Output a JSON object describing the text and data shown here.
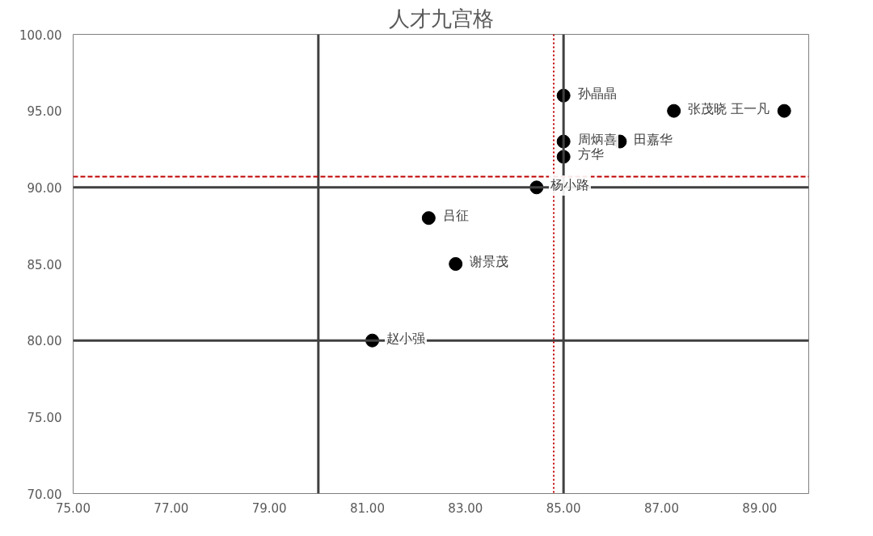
{
  "chart_data": {
    "type": "scatter",
    "title": "人才九宫格",
    "series": [
      {
        "color": "#000000",
        "x": [
          85,
          87.25,
          89.5,
          85,
          86.15,
          85,
          84.45,
          82.25,
          82.8,
          81.1
        ],
        "values": [
          96,
          95,
          95,
          93,
          93,
          92,
          90,
          88,
          85,
          80
        ]
      }
    ],
    "annotations": [
      {
        "text": "孙晶晶",
        "x": 85,
        "y": 96
      },
      {
        "text": "张茂晓",
        "x": 87.25,
        "y": 95
      },
      {
        "text": "王一凡",
        "x": 89.5,
        "y": 95
      },
      {
        "text": "周炳喜",
        "x": 85,
        "y": 93
      },
      {
        "text": "田嘉华",
        "x": 86.15,
        "y": 93
      },
      {
        "text": "方华",
        "x": 85,
        "y": 92
      },
      {
        "text": "杨小路",
        "x": 84.45,
        "y": 90
      },
      {
        "text": "吕征",
        "x": 82.25,
        "y": 88
      },
      {
        "text": "谢景茂",
        "x": 82.8,
        "y": 85
      },
      {
        "text": "赵小强",
        "x": 81.1,
        "y": 80
      }
    ],
    "ref_lines": [
      {
        "axis": "x",
        "value": 80,
        "color": "#404040",
        "line_style": "solid"
      },
      {
        "axis": "x",
        "value": 85,
        "color": "#404040",
        "line_style": "solid"
      },
      {
        "axis": "y",
        "value": 90,
        "color": "#404040",
        "line_style": "solid"
      },
      {
        "axis": "y",
        "value": 80,
        "color": "#404040",
        "line_style": "solid"
      },
      {
        "axis": "y",
        "value": 90.7,
        "color": "#c00000",
        "line_style": "dashed"
      },
      {
        "axis": "x",
        "value": 84.8,
        "color": "#c00000",
        "line_style": "dotted"
      }
    ],
    "xlim": [
      75,
      90
    ],
    "xticks": [
      {
        "value": 75,
        "label": "75.00"
      },
      {
        "value": 77,
        "label": "77.00"
      },
      {
        "value": 79,
        "label": "79.00"
      },
      {
        "value": 81,
        "label": "81.00"
      },
      {
        "value": 83,
        "label": "83.00"
      },
      {
        "value": 85,
        "label": "85.00"
      },
      {
        "value": 87,
        "label": "87.00"
      },
      {
        "value": 89,
        "label": "89.00"
      }
    ],
    "ylim": [
      70,
      100
    ],
    "yticks": [
      {
        "value": 70,
        "label": "70.00"
      },
      {
        "value": 75,
        "label": "75.00"
      },
      {
        "value": 80,
        "label": "80.00"
      },
      {
        "value": 85,
        "label": "85.00"
      },
      {
        "value": 90,
        "label": "90.00"
      },
      {
        "value": 95,
        "label": "95.00"
      },
      {
        "value": 100,
        "label": "100.00"
      }
    ],
    "marker": "circle",
    "grid": false
  }
}
